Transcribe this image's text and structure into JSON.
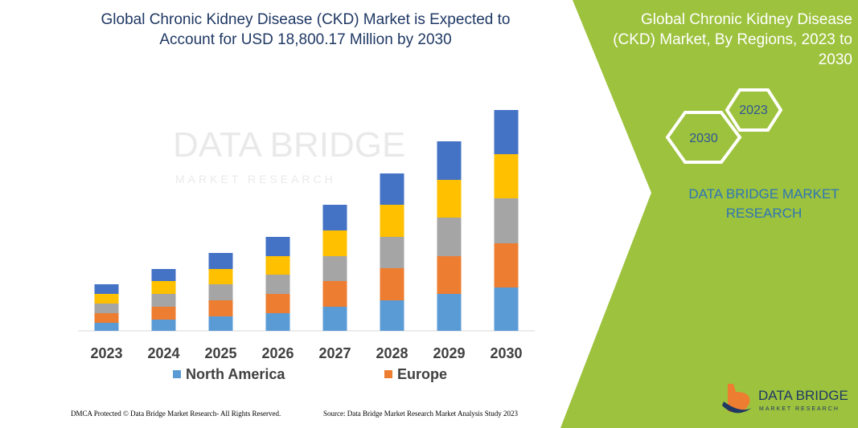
{
  "chart_data": {
    "type": "bar",
    "stacked": true,
    "title": "Global Chronic Kidney Disease (CKD) Market is Expected to Account for USD 18,800.17 Million by 2030",
    "categories": [
      "2023",
      "2024",
      "2025",
      "2026",
      "2027",
      "2028",
      "2029",
      "2030"
    ],
    "series": [
      {
        "name": "North America",
        "color": "#5b9bd5",
        "values": [
          10,
          14,
          18,
          22,
          30,
          38,
          46,
          54
        ]
      },
      {
        "name": "Europe",
        "color": "#ed7d31",
        "values": [
          12,
          16,
          20,
          24,
          32,
          40,
          47,
          55
        ]
      },
      {
        "color": "#a5a5a5",
        "values": [
          12,
          16,
          20,
          24,
          31,
          39,
          48,
          56
        ]
      },
      {
        "color": "#ffc000",
        "values": [
          12,
          16,
          19,
          23,
          32,
          40,
          47,
          55
        ]
      },
      {
        "color": "#4472c4",
        "values": [
          12,
          15,
          20,
          24,
          32,
          39,
          48,
          55
        ]
      }
    ],
    "ylim": [
      0,
      290
    ]
  },
  "panel": {
    "title": "Global Chronic Kidney Disease (CKD) Market, By Regions, 2023 to 2030",
    "hexagons": [
      "2023",
      "2030"
    ],
    "brand": "DATA BRIDGE MARKET RESEARCH"
  },
  "logo": {
    "name": "DATA BRIDGE",
    "tagline": "MARKET RESEARCH"
  },
  "footer": {
    "left": "DMCA Protected © Data Bridge Market Research-  All Rights Reserved.",
    "right": "Source: Data Bridge Market Research  Market Analysis Study 2023"
  }
}
